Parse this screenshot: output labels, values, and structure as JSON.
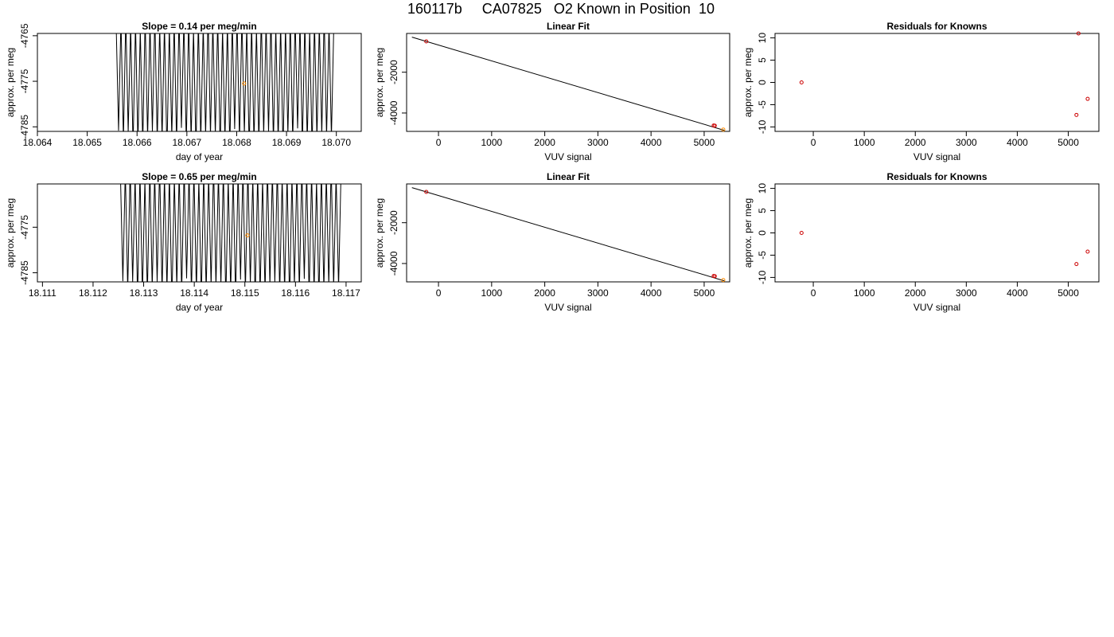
{
  "title": "160117b     CA07825   O2 Known in Position  10",
  "chart_data": [
    {
      "type": "line",
      "title": "Slope =  0.14  per meg/min",
      "xlabel": "day of year",
      "ylabel": "approx. per meg",
      "xlim": [
        18.064,
        18.0705
      ],
      "ylim": [
        -4786,
        -4764.5
      ],
      "x_ticks": [
        "18.064",
        "18.065",
        "18.066",
        "18.067",
        "18.068",
        "18.069",
        "18.070"
      ],
      "y_ticks": [
        "-4765",
        "-4775",
        "-4785"
      ],
      "series": [
        {
          "color": "#000000",
          "x_start": 18.06558,
          "x_end": 18.06995,
          "y_high": -4762,
          "y_low": -4788,
          "oscillations": 90
        }
      ],
      "points": [
        {
          "x": 18.06815,
          "y": -4775.5,
          "color": "#ff8c00"
        }
      ],
      "grid": false
    },
    {
      "type": "scatter",
      "title": "Linear Fit",
      "xlabel": "VUV signal",
      "ylabel": "approx. per meg",
      "xlim": [
        -600,
        5480
      ],
      "ylim": [
        -4900,
        -100
      ],
      "x_ticks": [
        "0",
        "1000",
        "2000",
        "3000",
        "4000",
        "5000"
      ],
      "y_ticks": [
        "-2000",
        "-4000"
      ],
      "fit_line": {
        "x": [
          -500,
          5380
        ],
        "y": [
          -280,
          -4850
        ]
      },
      "points": [
        {
          "x": -230,
          "y": -490,
          "color": "#cc0000"
        },
        {
          "x": 5180,
          "y": -4610,
          "color": "#cc0000"
        },
        {
          "x": 5200,
          "y": -4620,
          "color": "#cc0000"
        },
        {
          "x": 5360,
          "y": -4810,
          "color": "#ff8c00"
        }
      ],
      "grid": false
    },
    {
      "type": "scatter",
      "title": "Residuals for Knowns",
      "xlabel": "VUV signal",
      "ylabel": "approx. per meg",
      "xlim": [
        -750,
        5600
      ],
      "ylim": [
        -11,
        11
      ],
      "x_ticks": [
        "0",
        "1000",
        "2000",
        "3000",
        "4000",
        "5000"
      ],
      "y_ticks": [
        "10",
        "5",
        "0",
        "-5",
        "-10"
      ],
      "points": [
        {
          "x": -230,
          "y": 0,
          "color": "#cc0000"
        },
        {
          "x": 5200,
          "y": 11,
          "color": "#cc0000"
        },
        {
          "x": 5160,
          "y": -7.3,
          "color": "#cc0000"
        },
        {
          "x": 5380,
          "y": -3.7,
          "color": "#cc0000"
        }
      ],
      "grid": false
    },
    {
      "type": "line",
      "title": "Slope =  0.65  per meg/min",
      "xlabel": "day of year",
      "ylabel": "approx. per meg",
      "xlim": [
        18.1109,
        18.1173
      ],
      "ylim": [
        -4787,
        -4765.5
      ],
      "x_ticks": [
        "18.111",
        "18.112",
        "18.113",
        "18.114",
        "18.115",
        "18.116",
        "18.117"
      ],
      "y_ticks": [
        "-4775",
        "-4785"
      ],
      "series": [
        {
          "color": "#000000",
          "x_start": 18.11254,
          "x_end": 18.1169,
          "y_high": -4763,
          "y_low": -4789,
          "oscillations": 90
        }
      ],
      "points": [
        {
          "x": 18.11505,
          "y": -4776.8,
          "color": "#ff8c00"
        }
      ],
      "grid": false
    },
    {
      "type": "scatter",
      "title": "Linear Fit",
      "xlabel": "VUV signal",
      "ylabel": "approx. per meg",
      "xlim": [
        -600,
        5480
      ],
      "ylim": [
        -4900,
        -100
      ],
      "x_ticks": [
        "0",
        "1000",
        "2000",
        "3000",
        "4000",
        "5000"
      ],
      "y_ticks": [
        "-2000",
        "-4000"
      ],
      "fit_line": {
        "x": [
          -500,
          5380
        ],
        "y": [
          -280,
          -4850
        ]
      },
      "points": [
        {
          "x": -230,
          "y": -490,
          "color": "#cc0000"
        },
        {
          "x": 5180,
          "y": -4610,
          "color": "#cc0000"
        },
        {
          "x": 5200,
          "y": -4620,
          "color": "#cc0000"
        },
        {
          "x": 5360,
          "y": -4810,
          "color": "#ff8c00"
        }
      ],
      "grid": false
    },
    {
      "type": "scatter",
      "title": "Residuals for Knowns",
      "xlabel": "VUV signal",
      "ylabel": "approx. per meg",
      "xlim": [
        -750,
        5600
      ],
      "ylim": [
        -11,
        11
      ],
      "x_ticks": [
        "0",
        "1000",
        "2000",
        "3000",
        "4000",
        "5000"
      ],
      "y_ticks": [
        "10",
        "5",
        "0",
        "-5",
        "-10"
      ],
      "points": [
        {
          "x": -230,
          "y": 0,
          "color": "#cc0000"
        },
        {
          "x": 5160,
          "y": -7,
          "color": "#cc0000"
        },
        {
          "x": 5380,
          "y": -4.2,
          "color": "#cc0000"
        }
      ],
      "grid": false
    }
  ]
}
